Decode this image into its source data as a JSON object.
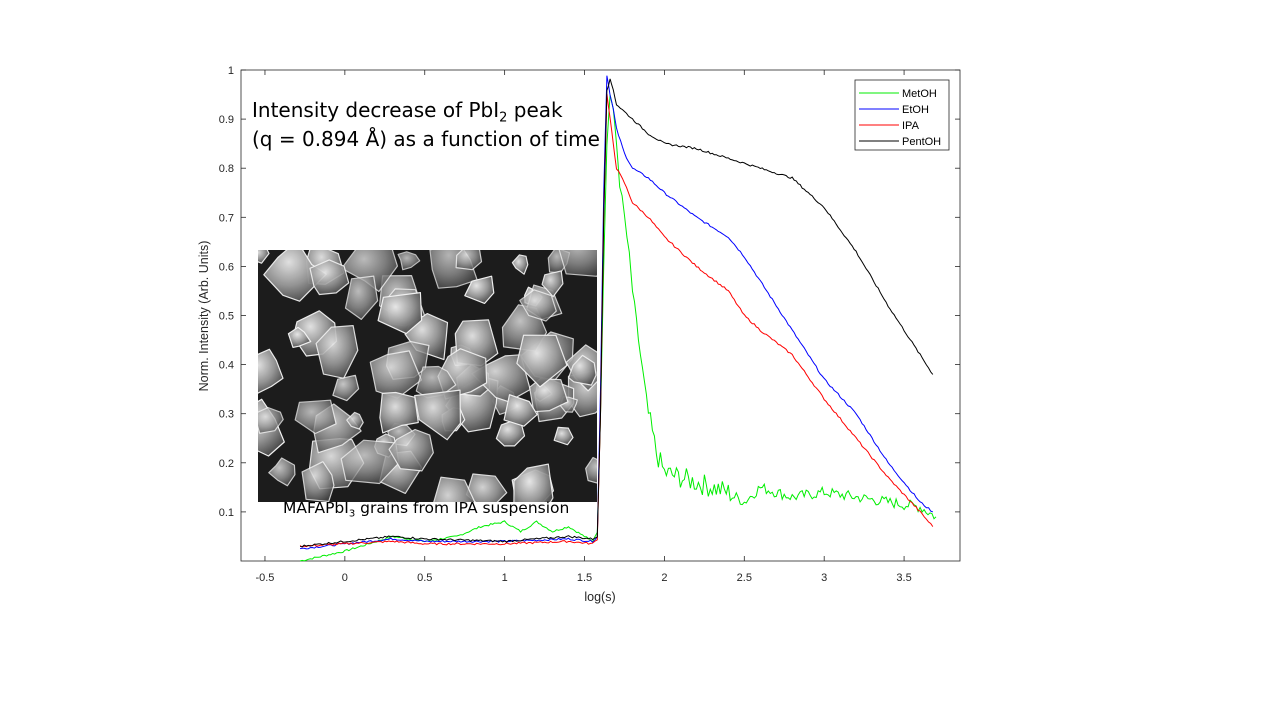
{
  "chart_data": {
    "type": "line",
    "title": "",
    "xlabel": "log(s)",
    "ylabel": "Norm. Intensity (Arb. Units)",
    "xlim": [
      -0.65,
      3.85
    ],
    "ylim": [
      0.0,
      1.0
    ],
    "x_ticks": [
      -0.5,
      0,
      0.5,
      1,
      1.5,
      2,
      2.5,
      3,
      3.5
    ],
    "x_tick_labels": [
      "-0.5",
      "0",
      "0.5",
      "1",
      "1.5",
      "2",
      "2.5",
      "3",
      "3.5"
    ],
    "y_ticks": [
      0.1,
      0.2,
      0.3,
      0.4,
      0.5,
      0.6,
      0.7,
      0.8,
      0.9,
      1.0
    ],
    "y_tick_labels": [
      "0.1",
      "0.2",
      "0.3",
      "0.4",
      "0.5",
      "0.6",
      "0.7",
      "0.8",
      "0.9",
      "1"
    ],
    "grid": false,
    "legend_position": "top-right",
    "series": [
      {
        "name": "MetOH",
        "color": "#00ee00",
        "x": [
          -0.28,
          0.0,
          0.3,
          0.5,
          0.7,
          0.85,
          1.0,
          1.1,
          1.2,
          1.3,
          1.4,
          1.5,
          1.55,
          1.58,
          1.6,
          1.62,
          1.64,
          1.66,
          1.68,
          1.7,
          1.72,
          1.75,
          1.78,
          1.8,
          1.85,
          1.9,
          1.95,
          2.0,
          2.1,
          2.2,
          2.3,
          2.4,
          2.5,
          2.6,
          2.8,
          3.0,
          3.2,
          3.4,
          3.6,
          3.7
        ],
        "y": [
          0.0,
          0.02,
          0.05,
          0.04,
          0.05,
          0.07,
          0.08,
          0.06,
          0.08,
          0.06,
          0.07,
          0.05,
          0.04,
          0.06,
          0.3,
          0.6,
          0.85,
          0.95,
          0.92,
          0.85,
          0.77,
          0.7,
          0.62,
          0.55,
          0.42,
          0.3,
          0.22,
          0.18,
          0.17,
          0.16,
          0.15,
          0.14,
          0.12,
          0.15,
          0.13,
          0.14,
          0.13,
          0.12,
          0.11,
          0.09
        ]
      },
      {
        "name": "EtOH",
        "color": "#0000ff",
        "x": [
          -0.28,
          0.0,
          0.3,
          0.5,
          1.0,
          1.4,
          1.55,
          1.58,
          1.6,
          1.62,
          1.64,
          1.66,
          1.68,
          1.7,
          1.75,
          1.8,
          1.9,
          2.0,
          2.2,
          2.4,
          2.5,
          2.6,
          2.8,
          3.0,
          3.2,
          3.4,
          3.6,
          3.68
        ],
        "y": [
          0.025,
          0.035,
          0.045,
          0.04,
          0.04,
          0.045,
          0.04,
          0.05,
          0.35,
          0.75,
          0.99,
          0.95,
          0.92,
          0.88,
          0.83,
          0.8,
          0.78,
          0.75,
          0.7,
          0.66,
          0.62,
          0.57,
          0.47,
          0.37,
          0.3,
          0.2,
          0.12,
          0.1
        ]
      },
      {
        "name": "IPA",
        "color": "#ff0000",
        "x": [
          -0.28,
          0.0,
          0.3,
          0.5,
          1.0,
          1.4,
          1.55,
          1.58,
          1.6,
          1.62,
          1.64,
          1.66,
          1.68,
          1.7,
          1.75,
          1.8,
          1.9,
          2.0,
          2.2,
          2.4,
          2.5,
          2.6,
          2.8,
          3.0,
          3.2,
          3.4,
          3.6,
          3.68
        ],
        "y": [
          0.03,
          0.035,
          0.04,
          0.035,
          0.035,
          0.04,
          0.035,
          0.045,
          0.3,
          0.7,
          0.95,
          0.9,
          0.85,
          0.8,
          0.77,
          0.73,
          0.7,
          0.66,
          0.6,
          0.55,
          0.5,
          0.47,
          0.42,
          0.33,
          0.25,
          0.17,
          0.1,
          0.07
        ]
      },
      {
        "name": "PentOH",
        "color": "#000000",
        "x": [
          -0.28,
          0.0,
          0.3,
          0.5,
          1.0,
          1.4,
          1.55,
          1.58,
          1.6,
          1.62,
          1.64,
          1.66,
          1.68,
          1.7,
          1.8,
          1.9,
          2.0,
          2.2,
          2.4,
          2.5,
          2.6,
          2.7,
          2.8,
          3.0,
          3.2,
          3.4,
          3.6,
          3.68
        ],
        "y": [
          0.03,
          0.04,
          0.05,
          0.045,
          0.04,
          0.05,
          0.045,
          0.05,
          0.3,
          0.7,
          0.96,
          0.98,
          0.96,
          0.93,
          0.9,
          0.87,
          0.85,
          0.84,
          0.82,
          0.81,
          0.8,
          0.79,
          0.78,
          0.72,
          0.63,
          0.52,
          0.42,
          0.38
        ]
      }
    ]
  },
  "annotations": {
    "title_line1_pre": "Intensity decrease of PbI",
    "title_line1_sub": "2",
    "title_line1_post": " peak",
    "title_line2": "(q = 0.894 Å) as a function of time",
    "caption_pre": "MAFAPbI",
    "caption_sub": "3",
    "caption_post": " grains from IPA suspension"
  }
}
